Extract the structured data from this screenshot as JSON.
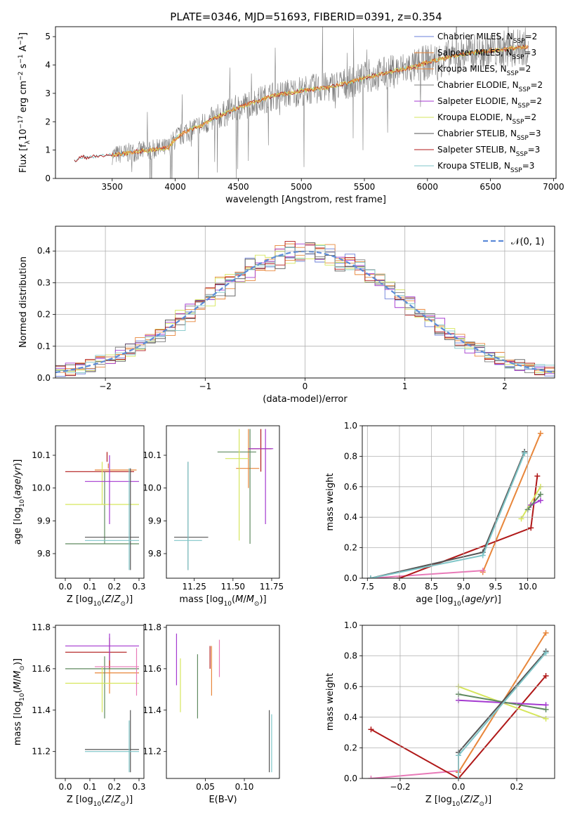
{
  "figure_title": "PLATE=0346, MJD=51693, FIBERID=0391, z=0.354",
  "colors": {
    "chabrier_miles": "#6a7fd8",
    "salpeter_miles": "#e8863a",
    "kroupa_miles": "#e8863a",
    "chabrier_elodie": "#7f7f7f",
    "salpeter_elodie": "#a43ad0",
    "kroupa_elodie": "#d6e65c",
    "chabrier_stelib": "#555555",
    "salpeter_stelib": "#b01818",
    "kroupa_stelib": "#7fc6c8",
    "normal_curve": "#5b8ad8",
    "pink": "#e87ab8",
    "green": "#5f8a5f"
  },
  "chart_data": [
    {
      "id": "spectrum",
      "type": "line",
      "title": "PLATE=0346, MJD=51693, FIBERID=0391, z=0.354",
      "xlabel": "wavelength [Angstrom, rest frame]",
      "ylabel_html": "Flux [f<tspan baseline-shift='sub' font-size='9'>λ</tspan>10<tspan baseline-shift='super' font-size='9'>−17</tspan> erg cm<tspan baseline-shift='super' font-size='9'>−2</tspan> s<tspan baseline-shift='super' font-size='9'>−1</tspan> A<tspan baseline-shift='super' font-size='9'>−1</tspan>]",
      "xlim": [
        3050,
        7020
      ],
      "ylim": [
        0,
        5.35
      ],
      "xticks": [
        3500,
        4000,
        4500,
        5000,
        5500,
        6000,
        6500,
        7000
      ],
      "yticks": [
        0,
        1,
        2,
        3,
        4,
        5
      ],
      "legend": [
        {
          "label": "Chabrier MILES, N",
          "sub": "SSP",
          "suffix": "=2",
          "color": "#6a7fd8"
        },
        {
          "label": "Salpeter MILES, N",
          "sub": "SSP",
          "suffix": "=3",
          "color": "#e8863a"
        },
        {
          "label": "Kroupa MILES, N",
          "sub": "SSP",
          "suffix": "=2",
          "color": "#e8863a"
        },
        {
          "label": "Chabrier ELODIE, N",
          "sub": "SSP",
          "suffix": "=2",
          "color": "#7f7f7f"
        },
        {
          "label": "Salpeter ELODIE, N",
          "sub": "SSP",
          "suffix": "=2",
          "color": "#a43ad0"
        },
        {
          "label": "Kroupa ELODIE, N",
          "sub": "SSP",
          "suffix": "=2",
          "color": "#d6e65c"
        },
        {
          "label": "Chabrier STELIB, N",
          "sub": "SSP",
          "suffix": "=3",
          "color": "#555555"
        },
        {
          "label": "Salpeter STELIB, N",
          "sub": "SSP",
          "suffix": "=3",
          "color": "#b01818"
        },
        {
          "label": "Kroupa STELIB, N",
          "sub": "SSP",
          "suffix": "=3",
          "color": "#7fc6c8"
        }
      ],
      "model_x": [
        3200,
        3250,
        3300,
        3400,
        3500,
        3600,
        3700,
        3800,
        3900,
        3950,
        4000,
        4050,
        4100,
        4200,
        4300,
        4400,
        4500,
        4600,
        4700,
        4800,
        4900,
        5000,
        5100,
        5200,
        5300,
        5400,
        5500,
        5600,
        5700,
        5800,
        5900,
        6000,
        6100,
        6200,
        6300,
        6400,
        6500,
        6600,
        6700,
        6800
      ],
      "model_y": [
        0.6,
        0.75,
        0.75,
        0.78,
        0.82,
        0.88,
        0.95,
        1.0,
        1.05,
        1.1,
        1.4,
        1.55,
        1.7,
        1.85,
        2.1,
        2.3,
        2.5,
        2.65,
        2.8,
        2.95,
        3.0,
        3.1,
        3.15,
        3.2,
        3.3,
        3.4,
        3.55,
        3.65,
        3.75,
        3.85,
        3.95,
        4.1,
        4.2,
        4.3,
        4.4,
        4.45,
        4.5,
        4.55,
        4.6,
        4.65
      ]
    },
    {
      "id": "residuals",
      "type": "area",
      "xlabel": "(data-model)/error",
      "ylabel": "Normed distribution",
      "xlim": [
        -2.5,
        2.5
      ],
      "ylim": [
        0,
        0.478
      ],
      "xticks": [
        -2,
        -1,
        0,
        1,
        2
      ],
      "yticks": [
        0,
        0.1,
        0.2,
        0.3,
        0.4
      ],
      "legend_label": "𝒩(0, 1)",
      "bin_width": 0.1
    },
    {
      "id": "age_vs_Z",
      "type": "scatter",
      "xlabel_html": "Z [log<tspan baseline-shift='sub' font-size='9'>10</tspan>(<tspan font-style='italic'>Z</tspan>/<tspan font-style='italic'>Z</tspan><tspan baseline-shift='sub' font-size='9'>⊙</tspan>)]",
      "ylabel_html": "age  [log<tspan baseline-shift='sub' font-size='9'>10</tspan>(<tspan font-style='italic'>age</tspan>/<tspan font-style='italic'>yr</tspan>)]",
      "xlim": [
        -0.04,
        0.32
      ],
      "ylim": [
        9.725,
        10.19
      ],
      "xticks": [
        0.0,
        0.1,
        0.2,
        0.3
      ],
      "yticks": [
        9.8,
        9.9,
        10.0,
        10.1
      ],
      "points": [
        {
          "x": 0.175,
          "y": 10.055,
          "xe": [
            0.12,
            0.29
          ],
          "ye": [
            10.06,
            10.075
          ],
          "color": "#e8863a"
        },
        {
          "x": 0.17,
          "y": 10.05,
          "xe": [
            0.0,
            0.28
          ],
          "ye": [
            10.08,
            10.11
          ],
          "color": "#b01818"
        },
        {
          "x": 0.16,
          "y": 9.83,
          "xe": [
            0.0,
            0.3
          ],
          "ye": [
            9.83,
            10.05
          ],
          "color": "#5f8a5f"
        },
        {
          "x": 0.15,
          "y": 9.95,
          "xe": [
            0.0,
            0.3
          ],
          "ye": [
            9.95,
            10.08
          ],
          "color": "#d6e65c"
        },
        {
          "x": 0.18,
          "y": 10.02,
          "xe": [
            0.08,
            0.3
          ],
          "ye": [
            9.89,
            10.1
          ],
          "color": "#a43ad0"
        },
        {
          "x": 0.265,
          "y": 9.85,
          "xe": [
            0.08,
            0.3
          ],
          "ye": [
            9.75,
            10.06
          ],
          "color": "#555555"
        },
        {
          "x": 0.26,
          "y": 9.84,
          "xe": [
            0.08,
            0.3
          ],
          "ye": [
            9.75,
            10.06
          ],
          "color": "#7fc6c8"
        }
      ]
    },
    {
      "id": "age_vs_mass",
      "type": "scatter",
      "xlabel_html": "mass [log<tspan baseline-shift='sub' font-size='9'>10</tspan>(<tspan font-style='italic'>M</tspan>/<tspan font-style='italic'>M</tspan><tspan baseline-shift='sub' font-size='9'>⊙</tspan>)]",
      "xlim": [
        11.07,
        11.8
      ],
      "ylim": [
        9.725,
        10.19
      ],
      "xticks": [
        11.25,
        11.5,
        11.75
      ],
      "yticks": [
        9.8,
        9.9,
        10.0,
        10.1
      ],
      "points": [
        {
          "x": 11.6,
          "y": 10.06,
          "xe": [
            11.52,
            11.67
          ],
          "ye": [
            10.0,
            10.18
          ],
          "color": "#e8863a"
        },
        {
          "x": 11.68,
          "y": 10.12,
          "xe": [
            11.6,
            11.75
          ],
          "ye": [
            10.05,
            10.18
          ],
          "color": "#b01818"
        },
        {
          "x": 11.61,
          "y": 10.11,
          "xe": [
            11.4,
            11.65
          ],
          "ye": [
            9.83,
            10.18
          ],
          "color": "#5f8a5f"
        },
        {
          "x": 11.54,
          "y": 10.09,
          "xe": [
            11.45,
            11.6
          ],
          "ye": [
            9.84,
            10.18
          ],
          "color": "#d6e65c"
        },
        {
          "x": 11.71,
          "y": 10.12,
          "xe": [
            11.6,
            11.76
          ],
          "ye": [
            9.89,
            10.18
          ],
          "color": "#a43ad0"
        },
        {
          "x": 11.21,
          "y": 9.85,
          "xe": [
            11.12,
            11.34
          ],
          "ye": [
            9.75,
            10.08
          ],
          "color": "#555555"
        },
        {
          "x": 11.21,
          "y": 9.84,
          "xe": [
            11.12,
            11.3
          ],
          "ye": [
            9.75,
            10.08
          ],
          "color": "#7fc6c8"
        }
      ]
    },
    {
      "id": "weight_vs_age",
      "type": "line",
      "xlabel_html": "age  [log<tspan baseline-shift='sub' font-size='9'>10</tspan>(<tspan font-style='italic'>age</tspan>/<tspan font-style='italic'>yr</tspan>)]",
      "ylabel": "mass weight",
      "xlim": [
        7.42,
        10.42
      ],
      "ylim": [
        0,
        1.0
      ],
      "xticks": [
        7.5,
        8.0,
        8.5,
        9.0,
        9.5,
        10.0
      ],
      "yticks": [
        0.0,
        0.2,
        0.4,
        0.6,
        0.8,
        1.0
      ],
      "series": [
        {
          "color": "#e8863a",
          "x": [
            9.3,
            10.2
          ],
          "y": [
            0.04,
            0.95
          ]
        },
        {
          "color": "#e87ab8",
          "x": [
            7.55,
            9.3
          ],
          "y": [
            0.0,
            0.05
          ]
        },
        {
          "color": "#b01818",
          "x": [
            8.0,
            10.05,
            10.15
          ],
          "y": [
            0.0,
            0.33,
            0.67
          ]
        },
        {
          "color": "#d6e65c",
          "x": [
            9.9,
            10.2
          ],
          "y": [
            0.39,
            0.6
          ]
        },
        {
          "color": "#a43ad0",
          "x": [
            10.05,
            10.2
          ],
          "y": [
            0.48,
            0.51
          ]
        },
        {
          "color": "#5f8a5f",
          "x": [
            10.0,
            10.2
          ],
          "y": [
            0.45,
            0.55
          ]
        },
        {
          "color": "#555555",
          "x": [
            7.55,
            9.3,
            9.95
          ],
          "y": [
            0.0,
            0.17,
            0.83
          ]
        },
        {
          "color": "#7fc6c8",
          "x": [
            7.55,
            9.3,
            9.95
          ],
          "y": [
            0.0,
            0.15,
            0.82
          ]
        }
      ]
    },
    {
      "id": "mass_vs_Z",
      "type": "scatter",
      "xlabel_html": "Z [log<tspan baseline-shift='sub' font-size='9'>10</tspan>(<tspan font-style='italic'>Z</tspan>/<tspan font-style='italic'>Z</tspan><tspan baseline-shift='sub' font-size='9'>⊙</tspan>)]",
      "ylabel_html": "mass [log<tspan baseline-shift='sub' font-size='9'>10</tspan>(<tspan font-style='italic'>M</tspan>/<tspan font-style='italic'>M</tspan><tspan baseline-shift='sub' font-size='9'>⊙</tspan>)]",
      "xlim": [
        -0.04,
        0.32
      ],
      "ylim": [
        11.07,
        11.81
      ],
      "xticks": [
        0.0,
        0.1,
        0.2,
        0.3
      ],
      "yticks": [
        11.2,
        11.4,
        11.6,
        11.8
      ],
      "points": [
        {
          "x": 0.18,
          "y": 11.58,
          "xe": [
            0.12,
            0.3
          ],
          "ye": [
            11.48,
            11.68
          ],
          "color": "#e8863a"
        },
        {
          "x": 0.18,
          "y": 11.68,
          "xe": [
            0.0,
            0.25
          ],
          "ye": [
            11.6,
            11.75
          ],
          "color": "#b01818"
        },
        {
          "x": 0.16,
          "y": 11.6,
          "xe": [
            0.0,
            0.3
          ],
          "ye": [
            11.36,
            11.66
          ],
          "color": "#5f8a5f"
        },
        {
          "x": 0.15,
          "y": 11.53,
          "xe": [
            0.0,
            0.3
          ],
          "ye": [
            11.39,
            11.61
          ],
          "color": "#d6e65c"
        },
        {
          "x": 0.18,
          "y": 11.71,
          "xe": [
            0.0,
            0.3
          ],
          "ye": [
            11.64,
            11.77
          ],
          "color": "#a43ad0"
        },
        {
          "x": 0.265,
          "y": 11.21,
          "xe": [
            0.08,
            0.3
          ],
          "ye": [
            11.1,
            11.4
          ],
          "color": "#555555"
        },
        {
          "x": 0.26,
          "y": 11.2,
          "xe": [
            0.08,
            0.3
          ],
          "ye": [
            11.1,
            11.35
          ],
          "color": "#7fc6c8"
        },
        {
          "x": 0.29,
          "y": 11.61,
          "xe": [
            0.12,
            0.3
          ],
          "ye": [
            11.47,
            11.7
          ],
          "color": "#e87ab8"
        }
      ]
    },
    {
      "id": "mass_vs_ebv",
      "type": "scatter",
      "xlabel": "E(B-V)",
      "xlim": [
        0.0,
        0.145
      ],
      "ylim": [
        11.07,
        11.81
      ],
      "xticks": [
        0.05,
        0.1
      ],
      "xtick_labels": [
        "0.05",
        "0.10"
      ],
      "yticks": [
        11.2,
        11.4,
        11.6,
        11.8
      ],
      "bars": [
        {
          "x": 0.013,
          "ye": [
            11.52,
            11.77
          ],
          "color": "#a43ad0"
        },
        {
          "x": 0.018,
          "ye": [
            11.39,
            11.65
          ],
          "color": "#d6e65c"
        },
        {
          "x": 0.04,
          "ye": [
            11.36,
            11.67
          ],
          "color": "#5f8a5f"
        },
        {
          "x": 0.058,
          "ye": [
            11.47,
            11.71
          ],
          "color": "#e8863a"
        },
        {
          "x": 0.056,
          "ye": [
            11.6,
            11.71
          ],
          "color": "#b01818"
        },
        {
          "x": 0.068,
          "ye": [
            11.56,
            11.74
          ],
          "color": "#e87ab8"
        },
        {
          "x": 0.132,
          "ye": [
            11.1,
            11.4
          ],
          "color": "#555555"
        },
        {
          "x": 0.135,
          "ye": [
            11.1,
            11.38
          ],
          "color": "#7fc6c8"
        }
      ]
    },
    {
      "id": "weight_vs_Z",
      "type": "line",
      "xlabel_html": "Z [log<tspan baseline-shift='sub' font-size='9'>10</tspan>(<tspan font-style='italic'>Z</tspan>/<tspan font-style='italic'>Z</tspan><tspan baseline-shift='sub' font-size='9'>⊙</tspan>)]",
      "ylabel": "mass weight",
      "xlim": [
        -0.33,
        0.33
      ],
      "ylim": [
        0,
        1.0
      ],
      "xticks": [
        -0.2,
        0.0,
        0.2
      ],
      "xtick_labels": [
        "−0.2",
        "0.0",
        "0.2"
      ],
      "yticks": [
        0.0,
        0.2,
        0.4,
        0.6,
        0.8,
        1.0
      ],
      "series": [
        {
          "color": "#e8863a",
          "x": [
            0.0,
            0.3
          ],
          "y": [
            0.04,
            0.95
          ]
        },
        {
          "color": "#e87ab8",
          "x": [
            -0.3,
            0.0
          ],
          "y": [
            0.0,
            0.05
          ]
        },
        {
          "color": "#b01818",
          "x": [
            -0.3,
            0.0,
            0.3
          ],
          "y": [
            0.32,
            0.0,
            0.67
          ]
        },
        {
          "color": "#d6e65c",
          "x": [
            0.0,
            0.3
          ],
          "y": [
            0.6,
            0.39
          ]
        },
        {
          "color": "#a43ad0",
          "x": [
            0.0,
            0.3
          ],
          "y": [
            0.51,
            0.48
          ]
        },
        {
          "color": "#5f8a5f",
          "x": [
            0.0,
            0.3
          ],
          "y": [
            0.55,
            0.45
          ]
        },
        {
          "color": "#555555",
          "x": [
            0.0,
            0.0,
            0.3
          ],
          "y": [
            0.0,
            0.17,
            0.83
          ]
        },
        {
          "color": "#7fc6c8",
          "x": [
            0.0,
            0.0,
            0.3
          ],
          "y": [
            0.0,
            0.15,
            0.82
          ]
        }
      ]
    }
  ]
}
